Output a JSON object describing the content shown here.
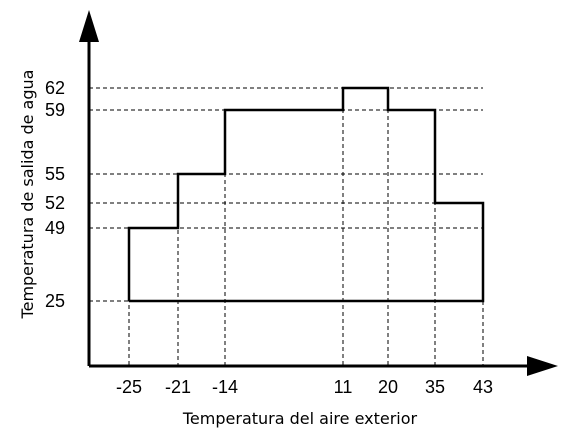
{
  "chart_data": {
    "type": "line",
    "xlabel": "Temperatura del aire exterior",
    "ylabel": "Temperatura de salida de agua",
    "x_ticks": [
      "-25",
      "-21",
      "-14",
      "11",
      "20",
      "35",
      "43"
    ],
    "y_ticks": [
      "25",
      "49",
      "52",
      "55",
      "59",
      "62"
    ],
    "series": [
      {
        "points": [
          [
            -25,
            25
          ],
          [
            -25,
            49
          ],
          [
            -21,
            49
          ],
          [
            -21,
            55
          ],
          [
            -14,
            55
          ],
          [
            -14,
            59
          ],
          [
            11,
            59
          ],
          [
            11,
            62
          ],
          [
            20,
            62
          ],
          [
            20,
            59
          ],
          [
            35,
            59
          ],
          [
            35,
            52
          ],
          [
            43,
            52
          ],
          [
            43,
            25
          ],
          [
            -25,
            25
          ]
        ]
      }
    ],
    "grid": "dashed guides at tick values",
    "x_scale": "categorical ticks (non-linear spacing)"
  }
}
